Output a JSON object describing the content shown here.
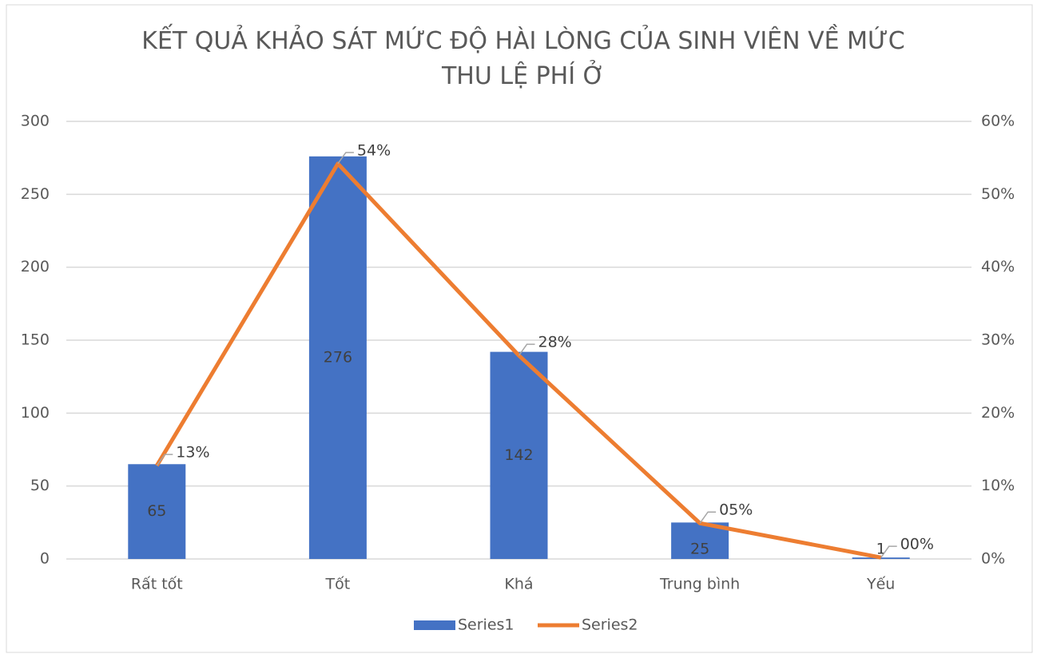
{
  "chart_data": {
    "type": "bar-line",
    "title": "KẾT QUẢ KHẢO SÁT MỨC ĐỘ HÀI LÒNG CỦA SINH VIÊN VỀ MỨC THU LỆ PHÍ Ở",
    "categories": [
      "Rất tốt",
      "Tốt",
      "Khá",
      "Trung bình",
      "Yếu"
    ],
    "series": [
      {
        "name": "Series1",
        "type": "bar",
        "color": "#4472c4",
        "values": [
          65,
          276,
          142,
          25,
          1
        ]
      },
      {
        "name": "Series2",
        "type": "line",
        "axis": "y2",
        "color": "#ed7d31",
        "values": [
          12.8,
          54.2,
          27.9,
          4.9,
          0.2
        ],
        "value_labels": [
          "13%",
          "54%",
          "28%",
          "05%",
          "00%"
        ]
      }
    ],
    "ylim": [
      0,
      300
    ],
    "yticks": [
      0,
      50,
      100,
      150,
      200,
      250,
      300
    ],
    "y2lim": [
      0,
      60
    ],
    "y2ticks": [
      {
        "value": 0,
        "label": "0%"
      },
      {
        "value": 10,
        "label": "10%"
      },
      {
        "value": 20,
        "label": "20%"
      },
      {
        "value": 30,
        "label": "30%"
      },
      {
        "value": 40,
        "label": "40%"
      },
      {
        "value": 50,
        "label": "50%"
      },
      {
        "value": 60,
        "label": "60%"
      }
    ],
    "grid": true,
    "legend": "bottom"
  }
}
